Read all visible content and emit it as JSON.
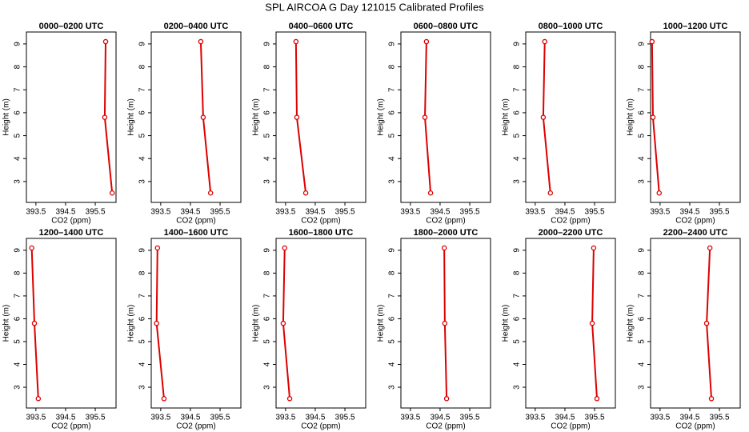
{
  "title": "SPL AIRCOA G  Day 121015  Calibrated Profiles",
  "chart_data": [
    {
      "type": "line",
      "title": "0000–0200 UTC",
      "xlabel": "CO2 (ppm)",
      "ylabel": "Height (m)",
      "color": "#dd0000",
      "x": [
        395.85,
        395.82,
        396.07
      ],
      "values": [
        9.1,
        5.8,
        2.5
      ],
      "xlim": [
        393.18,
        396.2
      ],
      "ylim": [
        2.09,
        9.52
      ],
      "xticks": [
        393.5,
        394.5,
        395.5
      ],
      "yticks": [
        3,
        4,
        5,
        6,
        7,
        8,
        9
      ]
    },
    {
      "type": "line",
      "title": "0200–0400 UTC",
      "xlabel": "CO2 (ppm)",
      "ylabel": "Height (m)",
      "color": "#dd0000",
      "x": [
        394.85,
        394.93,
        395.18
      ],
      "values": [
        9.1,
        5.8,
        2.5
      ],
      "xlim": [
        393.18,
        396.2
      ],
      "ylim": [
        2.09,
        9.52
      ],
      "xticks": [
        393.5,
        394.5,
        395.5
      ],
      "yticks": [
        3,
        4,
        5,
        6,
        7,
        8,
        9
      ]
    },
    {
      "type": "line",
      "title": "0400–0600 UTC",
      "xlabel": "CO2 (ppm)",
      "ylabel": "Height (m)",
      "color": "#dd0000",
      "x": [
        393.85,
        393.88,
        394.18
      ],
      "values": [
        9.1,
        5.8,
        2.5
      ],
      "xlim": [
        393.18,
        396.2
      ],
      "ylim": [
        2.09,
        9.52
      ],
      "xticks": [
        393.5,
        394.5,
        395.5
      ],
      "yticks": [
        3,
        4,
        5,
        6,
        7,
        8,
        9
      ]
    },
    {
      "type": "line",
      "title": "0600–0800 UTC",
      "xlabel": "CO2 (ppm)",
      "ylabel": "Height (m)",
      "color": "#dd0000",
      "x": [
        394.04,
        393.99,
        394.18
      ],
      "values": [
        9.1,
        5.8,
        2.5
      ],
      "xlim": [
        393.18,
        396.2
      ],
      "ylim": [
        2.09,
        9.52
      ],
      "xticks": [
        393.5,
        394.5,
        395.5
      ],
      "yticks": [
        3,
        4,
        5,
        6,
        7,
        8,
        9
      ]
    },
    {
      "type": "line",
      "title": "0800–1000 UTC",
      "xlabel": "CO2 (ppm)",
      "ylabel": "Height (m)",
      "color": "#dd0000",
      "x": [
        393.82,
        393.77,
        394.01
      ],
      "values": [
        9.1,
        5.8,
        2.5
      ],
      "xlim": [
        393.18,
        396.2
      ],
      "ylim": [
        2.09,
        9.52
      ],
      "xticks": [
        393.5,
        394.5,
        395.5
      ],
      "yticks": [
        3,
        4,
        5,
        6,
        7,
        8,
        9
      ]
    },
    {
      "type": "line",
      "title": "1000–1200 UTC",
      "xlabel": "CO2 (ppm)",
      "ylabel": "Height (m)",
      "color": "#dd0000",
      "x": [
        393.23,
        393.26,
        393.47
      ],
      "values": [
        9.1,
        5.8,
        2.5
      ],
      "xlim": [
        393.18,
        396.2
      ],
      "ylim": [
        2.09,
        9.52
      ],
      "xticks": [
        393.5,
        394.5,
        395.5
      ],
      "yticks": [
        3,
        4,
        5,
        6,
        7,
        8,
        9
      ]
    },
    {
      "type": "line",
      "title": "1200–1400 UTC",
      "xlabel": "CO2 (ppm)",
      "ylabel": "Height (m)",
      "color": "#dd0000",
      "x": [
        393.36,
        393.45,
        393.58
      ],
      "values": [
        9.1,
        5.8,
        2.5
      ],
      "xlim": [
        393.18,
        396.2
      ],
      "ylim": [
        2.09,
        9.52
      ],
      "xticks": [
        393.5,
        394.5,
        395.5
      ],
      "yticks": [
        3,
        4,
        5,
        6,
        7,
        8,
        9
      ]
    },
    {
      "type": "line",
      "title": "1400–1600 UTC",
      "xlabel": "CO2 (ppm)",
      "ylabel": "Height (m)",
      "color": "#dd0000",
      "x": [
        393.39,
        393.36,
        393.61
      ],
      "values": [
        9.1,
        5.8,
        2.5
      ],
      "xlim": [
        393.18,
        396.2
      ],
      "ylim": [
        2.09,
        9.52
      ],
      "xticks": [
        393.5,
        394.5,
        395.5
      ],
      "yticks": [
        3,
        4,
        5,
        6,
        7,
        8,
        9
      ]
    },
    {
      "type": "line",
      "title": "1600–1800 UTC",
      "xlabel": "CO2 (ppm)",
      "ylabel": "Height (m)",
      "color": "#dd0000",
      "x": [
        393.47,
        393.42,
        393.64
      ],
      "values": [
        9.1,
        5.8,
        2.5
      ],
      "xlim": [
        393.18,
        396.2
      ],
      "ylim": [
        2.09,
        9.52
      ],
      "xticks": [
        393.5,
        394.5,
        395.5
      ],
      "yticks": [
        3,
        4,
        5,
        6,
        7,
        8,
        9
      ]
    },
    {
      "type": "line",
      "title": "1800–2000 UTC",
      "xlabel": "CO2 (ppm)",
      "ylabel": "Height (m)",
      "color": "#dd0000",
      "x": [
        394.64,
        394.66,
        394.72
      ],
      "values": [
        9.1,
        5.8,
        2.5
      ],
      "xlim": [
        393.18,
        396.2
      ],
      "ylim": [
        2.09,
        9.52
      ],
      "xticks": [
        393.5,
        394.5,
        395.5
      ],
      "yticks": [
        3,
        4,
        5,
        6,
        7,
        8,
        9
      ]
    },
    {
      "type": "line",
      "title": "2000–2200 UTC",
      "xlabel": "CO2 (ppm)",
      "ylabel": "Height (m)",
      "color": "#dd0000",
      "x": [
        395.47,
        395.42,
        395.58
      ],
      "values": [
        9.1,
        5.8,
        2.5
      ],
      "xlim": [
        393.18,
        396.2
      ],
      "ylim": [
        2.09,
        9.52
      ],
      "xticks": [
        393.5,
        394.5,
        395.5
      ],
      "yticks": [
        3,
        4,
        5,
        6,
        7,
        8,
        9
      ]
    },
    {
      "type": "line",
      "title": "2200–2400 UTC",
      "xlabel": "CO2 (ppm)",
      "ylabel": "Height (m)",
      "color": "#dd0000",
      "x": [
        395.18,
        395.07,
        395.23
      ],
      "values": [
        9.1,
        5.8,
        2.5
      ],
      "xlim": [
        393.18,
        396.2
      ],
      "ylim": [
        2.09,
        9.52
      ],
      "xticks": [
        393.5,
        394.5,
        395.5
      ],
      "yticks": [
        3,
        4,
        5,
        6,
        7,
        8,
        9
      ]
    }
  ]
}
